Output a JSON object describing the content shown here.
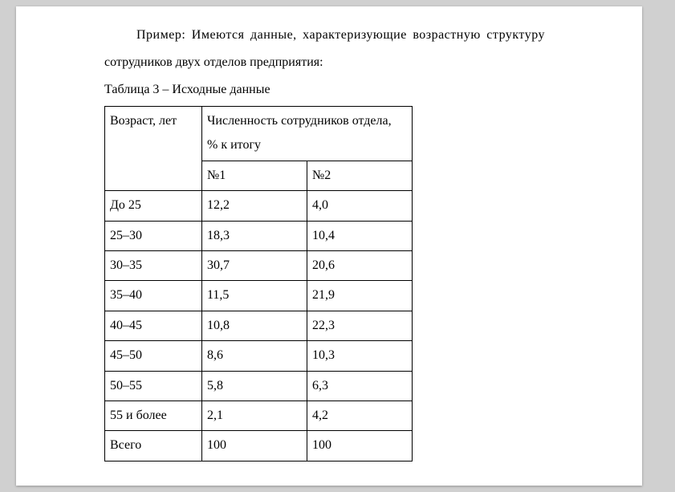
{
  "text": {
    "intro_line1": "Пример: Имеются данные, характеризующие возрастную структуру",
    "intro_line2": "сотрудников двух отделов предприятия:",
    "table_caption": "Таблица 3 – Исходные данные"
  },
  "table": {
    "header": {
      "age": "Возраст, лет",
      "employees_line1": "Численность сотрудников отдела,",
      "employees_line2": "% к итогу",
      "dept1": "№1",
      "dept2": "№2"
    },
    "rows": [
      {
        "age": "До 25",
        "d1": "12,2",
        "d2": "4,0"
      },
      {
        "age": "25–30",
        "d1": "18,3",
        "d2": "10,4"
      },
      {
        "age": "30–35",
        "d1": "30,7",
        "d2": "20,6"
      },
      {
        "age": "35–40",
        "d1": "11,5",
        "d2": "21,9"
      },
      {
        "age": "40–45",
        "d1": "10,8",
        "d2": "22,3"
      },
      {
        "age": "45–50",
        "d1": "8,6",
        "d2": "10,3"
      },
      {
        "age": "50–55",
        "d1": "5,8",
        "d2": "6,3"
      },
      {
        "age": "55 и более",
        "d1": "2,1",
        "d2": "4,2"
      },
      {
        "age": "Всего",
        "d1": "100",
        "d2": "100"
      }
    ]
  },
  "style": {
    "font_family": "Times New Roman",
    "font_size_pt": 12,
    "bg_color": "#ffffff",
    "border_color": "#000000",
    "text_color": "#000000",
    "outer_bg": "#d0d0d0"
  }
}
